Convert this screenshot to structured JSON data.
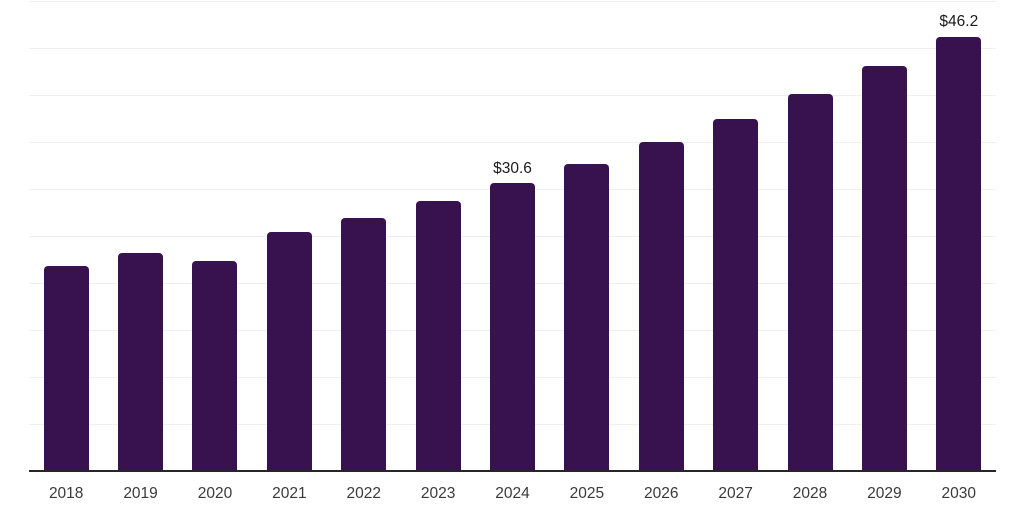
{
  "chart_data": {
    "type": "bar",
    "title": "",
    "xlabel": "",
    "ylabel": "",
    "categories": [
      "2018",
      "2019",
      "2020",
      "2021",
      "2022",
      "2023",
      "2024",
      "2025",
      "2026",
      "2027",
      "2028",
      "2029",
      "2030"
    ],
    "values": [
      21.8,
      23.2,
      22.3,
      25.4,
      26.9,
      28.7,
      30.6,
      32.7,
      35.0,
      37.4,
      40.1,
      43.1,
      46.2
    ],
    "data_labels": {
      "2024": "$30.6",
      "2030": "$46.2"
    },
    "ylim": [
      0,
      50
    ],
    "gridline_step": 5,
    "grid": "horizontal",
    "legend": "none",
    "colors": {
      "bar": "#38124f",
      "axis_line": "#262626",
      "gridline": "#efefef",
      "tick_label": "#3a3a3a",
      "data_label": "#1a1a1a",
      "background": "#ffffff"
    }
  }
}
